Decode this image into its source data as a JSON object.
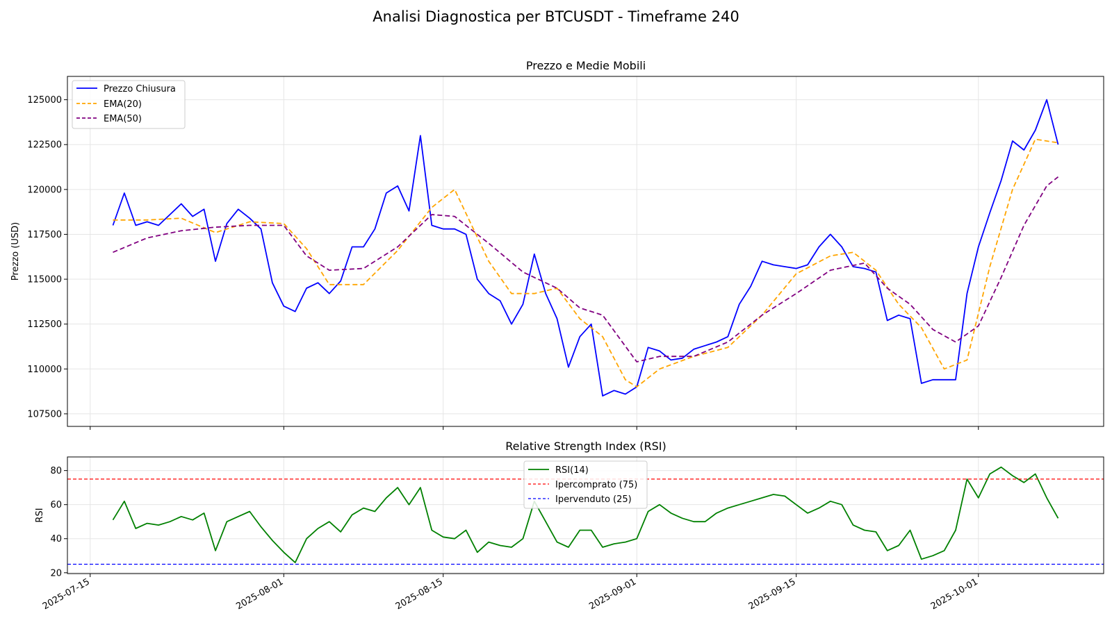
{
  "figure": {
    "suptitle": "Analisi Diagnostica per BTCUSDT - Timeframe 240"
  },
  "colors": {
    "price": "#0000ff",
    "ema20": "#ffa500",
    "ema50": "#800080",
    "rsi": "#008000",
    "overbought": "#ff0000",
    "oversold": "#0000ff",
    "grid": "#e5e5e5"
  },
  "x_ticks": [
    "2025-07-15",
    "2025-08-01",
    "2025-08-15",
    "2025-09-01",
    "2025-09-15",
    "2025-10-01"
  ],
  "chart_data": [
    {
      "type": "line",
      "title": "Prezzo e Medie Mobili",
      "xlabel": "",
      "ylabel": "Prezzo (USD)",
      "xlim": [
        "2025-07-13",
        "2025-10-12"
      ],
      "ylim": [
        106800,
        126300
      ],
      "yticks": [
        107500,
        110000,
        112500,
        115000,
        117500,
        120000,
        122500,
        125000
      ],
      "grid": true,
      "legend": "top-left",
      "series": [
        {
          "name": "Prezzo Chiusura",
          "color": "#0000ff",
          "style": "solid",
          "x": [
            "2025-07-17",
            "2025-07-18",
            "2025-07-19",
            "2025-07-20",
            "2025-07-21",
            "2025-07-22",
            "2025-07-23",
            "2025-07-24",
            "2025-07-25",
            "2025-07-26",
            "2025-07-27",
            "2025-07-28",
            "2025-07-29",
            "2025-07-30",
            "2025-07-31",
            "2025-08-01",
            "2025-08-02",
            "2025-08-03",
            "2025-08-04",
            "2025-08-05",
            "2025-08-06",
            "2025-08-07",
            "2025-08-08",
            "2025-08-09",
            "2025-08-10",
            "2025-08-11",
            "2025-08-12",
            "2025-08-13",
            "2025-08-14",
            "2025-08-15",
            "2025-08-16",
            "2025-08-17",
            "2025-08-18",
            "2025-08-19",
            "2025-08-20",
            "2025-08-21",
            "2025-08-22",
            "2025-08-23",
            "2025-08-24",
            "2025-08-25",
            "2025-08-26",
            "2025-08-27",
            "2025-08-28",
            "2025-08-29",
            "2025-08-30",
            "2025-08-31",
            "2025-09-01",
            "2025-09-02",
            "2025-09-03",
            "2025-09-04",
            "2025-09-05",
            "2025-09-06",
            "2025-09-07",
            "2025-09-08",
            "2025-09-09",
            "2025-09-10",
            "2025-09-11",
            "2025-09-12",
            "2025-09-13",
            "2025-09-14",
            "2025-09-15",
            "2025-09-16",
            "2025-09-17",
            "2025-09-18",
            "2025-09-19",
            "2025-09-20",
            "2025-09-21",
            "2025-09-22",
            "2025-09-23",
            "2025-09-24",
            "2025-09-25",
            "2025-09-26",
            "2025-09-27",
            "2025-09-28",
            "2025-09-29",
            "2025-09-30",
            "2025-10-01",
            "2025-10-02",
            "2025-10-03",
            "2025-10-04",
            "2025-10-05",
            "2025-10-06",
            "2025-10-07",
            "2025-10-08"
          ],
          "values": [
            118000,
            119800,
            118000,
            118200,
            118000,
            118600,
            119200,
            118500,
            118900,
            116000,
            118100,
            118900,
            118400,
            117800,
            114800,
            113500,
            113200,
            114500,
            114800,
            114200,
            114900,
            116800,
            116800,
            117800,
            119800,
            120200,
            118800,
            123000,
            118000,
            117800,
            117800,
            117500,
            115000,
            114200,
            113800,
            112500,
            113600,
            116400,
            114200,
            112800,
            110100,
            111800,
            112500,
            108500,
            108800,
            108600,
            109000,
            111200,
            111000,
            110500,
            110600,
            111100,
            111300,
            111500,
            111800,
            113600,
            114600,
            116000,
            115800,
            115700,
            115600,
            115800,
            116800,
            117500,
            116800,
            115700,
            115600,
            115400,
            112700,
            113000,
            112800,
            109200,
            109400,
            109400,
            109400,
            114200,
            116800,
            118700,
            120500,
            122700,
            122200,
            123300,
            125000,
            122500
          ]
        },
        {
          "name": "EMA(20)",
          "color": "#ffa500",
          "style": "dashed",
          "x": [
            "2025-07-17",
            "2025-07-20",
            "2025-07-23",
            "2025-07-26",
            "2025-07-29",
            "2025-08-01",
            "2025-08-03",
            "2025-08-05",
            "2025-08-08",
            "2025-08-11",
            "2025-08-14",
            "2025-08-16",
            "2025-08-19",
            "2025-08-21",
            "2025-08-23",
            "2025-08-25",
            "2025-08-27",
            "2025-08-29",
            "2025-08-31",
            "2025-09-01",
            "2025-09-03",
            "2025-09-06",
            "2025-09-09",
            "2025-09-12",
            "2025-09-15",
            "2025-09-18",
            "2025-09-20",
            "2025-09-22",
            "2025-09-24",
            "2025-09-26",
            "2025-09-28",
            "2025-09-30",
            "2025-10-02",
            "2025-10-04",
            "2025-10-06",
            "2025-10-08"
          ],
          "values": [
            118300,
            118300,
            118400,
            117600,
            118200,
            118100,
            116700,
            114700,
            114700,
            116600,
            119000,
            120000,
            116000,
            114200,
            114200,
            114500,
            112800,
            111800,
            109400,
            109000,
            110000,
            110700,
            111200,
            113000,
            115300,
            116300,
            116500,
            115500,
            113600,
            112300,
            110000,
            110500,
            115700,
            120000,
            122800,
            122600
          ]
        },
        {
          "name": "EMA(50)",
          "color": "#800080",
          "style": "dashed",
          "x": [
            "2025-07-17",
            "2025-07-20",
            "2025-07-23",
            "2025-07-26",
            "2025-07-29",
            "2025-08-01",
            "2025-08-03",
            "2025-08-05",
            "2025-08-08",
            "2025-08-11",
            "2025-08-14",
            "2025-08-16",
            "2025-08-19",
            "2025-08-22",
            "2025-08-25",
            "2025-08-27",
            "2025-08-29",
            "2025-09-01",
            "2025-09-03",
            "2025-09-06",
            "2025-09-09",
            "2025-09-12",
            "2025-09-15",
            "2025-09-18",
            "2025-09-21",
            "2025-09-23",
            "2025-09-25",
            "2025-09-27",
            "2025-09-29",
            "2025-10-01",
            "2025-10-03",
            "2025-10-05",
            "2025-10-07",
            "2025-10-08"
          ],
          "values": [
            116500,
            117300,
            117700,
            117900,
            118000,
            118000,
            116300,
            115500,
            115600,
            116800,
            118600,
            118500,
            117000,
            115400,
            114500,
            113400,
            113000,
            110400,
            110700,
            110700,
            111500,
            113000,
            114200,
            115500,
            115900,
            114500,
            113600,
            112200,
            111500,
            112400,
            115100,
            118000,
            120200,
            120700
          ]
        }
      ]
    },
    {
      "type": "line",
      "title": "Relative Strength Index (RSI)",
      "xlabel": "",
      "ylabel": "RSI",
      "xlim": [
        "2025-07-13",
        "2025-10-12"
      ],
      "ylim": [
        19.5,
        88
      ],
      "yticks": [
        20,
        40,
        60,
        80
      ],
      "grid": true,
      "legend": "top-center",
      "series": [
        {
          "name": "RSI(14)",
          "color": "#008000",
          "style": "solid",
          "x": [
            "2025-07-17",
            "2025-07-18",
            "2025-07-19",
            "2025-07-20",
            "2025-07-21",
            "2025-07-22",
            "2025-07-23",
            "2025-07-24",
            "2025-07-25",
            "2025-07-26",
            "2025-07-27",
            "2025-07-28",
            "2025-07-29",
            "2025-07-30",
            "2025-07-31",
            "2025-08-01",
            "2025-08-02",
            "2025-08-03",
            "2025-08-04",
            "2025-08-05",
            "2025-08-06",
            "2025-08-07",
            "2025-08-08",
            "2025-08-09",
            "2025-08-10",
            "2025-08-11",
            "2025-08-12",
            "2025-08-13",
            "2025-08-14",
            "2025-08-15",
            "2025-08-16",
            "2025-08-17",
            "2025-08-18",
            "2025-08-19",
            "2025-08-20",
            "2025-08-21",
            "2025-08-22",
            "2025-08-23",
            "2025-08-24",
            "2025-08-25",
            "2025-08-26",
            "2025-08-27",
            "2025-08-28",
            "2025-08-29",
            "2025-08-30",
            "2025-08-31",
            "2025-09-01",
            "2025-09-02",
            "2025-09-03",
            "2025-09-04",
            "2025-09-05",
            "2025-09-06",
            "2025-09-07",
            "2025-09-08",
            "2025-09-09",
            "2025-09-10",
            "2025-09-11",
            "2025-09-12",
            "2025-09-13",
            "2025-09-14",
            "2025-09-15",
            "2025-09-16",
            "2025-09-17",
            "2025-09-18",
            "2025-09-19",
            "2025-09-20",
            "2025-09-21",
            "2025-09-22",
            "2025-09-23",
            "2025-09-24",
            "2025-09-25",
            "2025-09-26",
            "2025-09-27",
            "2025-09-28",
            "2025-09-29",
            "2025-09-30",
            "2025-10-01",
            "2025-10-02",
            "2025-10-03",
            "2025-10-04",
            "2025-10-05",
            "2025-10-06",
            "2025-10-07",
            "2025-10-08"
          ],
          "values": [
            51,
            62,
            46,
            49,
            48,
            50,
            53,
            51,
            55,
            33,
            50,
            53,
            56,
            47,
            39,
            32,
            26,
            40,
            46,
            50,
            44,
            54,
            58,
            56,
            64,
            70,
            60,
            70,
            45,
            41,
            40,
            45,
            32,
            38,
            36,
            35,
            40,
            62,
            50,
            38,
            35,
            45,
            45,
            35,
            37,
            38,
            40,
            56,
            60,
            55,
            52,
            50,
            50,
            55,
            58,
            60,
            62,
            64,
            66,
            65,
            60,
            55,
            58,
            62,
            60,
            48,
            45,
            44,
            33,
            36,
            45,
            28,
            30,
            33,
            45,
            75,
            64,
            78,
            82,
            77,
            73,
            78,
            64,
            52
          ]
        },
        {
          "name": "Ipercomprato (75)",
          "color": "#ff0000",
          "style": "dashed",
          "level": 75
        },
        {
          "name": "Ipervenduto (25)",
          "color": "#0000ff",
          "style": "dashed",
          "level": 25
        }
      ]
    }
  ]
}
